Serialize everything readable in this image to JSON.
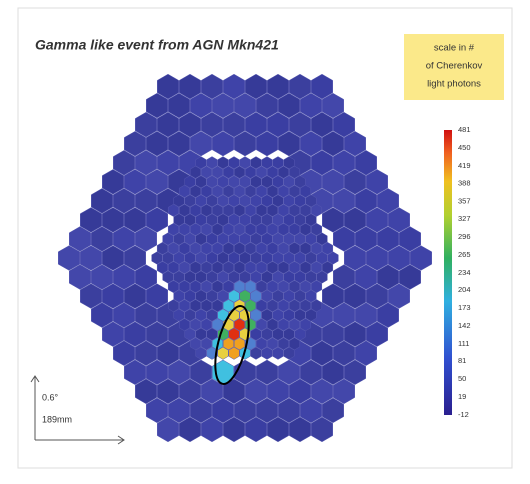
{
  "title": "Gamma like event from AGN Mkn421",
  "scale_note": [
    "scale in #",
    "of Cherenkov",
    "light photons"
  ],
  "colorbar": {
    "ticks": [
      481,
      450,
      419,
      388,
      357,
      327,
      296,
      265,
      234,
      204,
      173,
      142,
      111,
      81,
      50,
      19,
      -12
    ]
  },
  "scale_bar": {
    "angle": "0.6°",
    "length": "189mm"
  }
}
